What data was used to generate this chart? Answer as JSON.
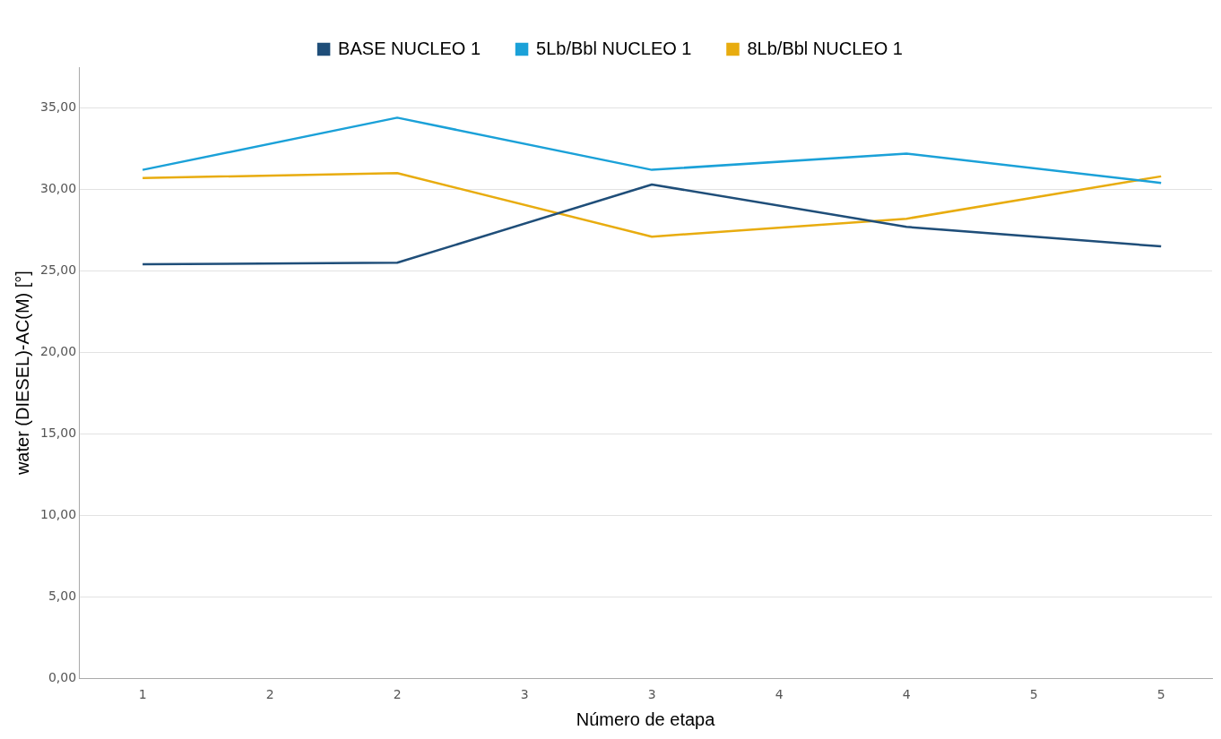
{
  "chart_data": {
    "type": "line",
    "xlabel": "Número de etapa",
    "ylabel": "water (DIESEL)-AC(M) [°]",
    "x": [
      1,
      2,
      3,
      4,
      5
    ],
    "series": [
      {
        "name": "BASE NUCLEO 1",
        "color": "#1f4e79",
        "values": [
          25.4,
          25.5,
          30.3,
          27.7,
          26.5
        ]
      },
      {
        "name": "5Lb/Bbl NUCLEO 1",
        "color": "#1ba1d8",
        "values": [
          31.2,
          34.4,
          31.2,
          32.2,
          30.4
        ]
      },
      {
        "name": "8Lb/Bbl NUCLEO 1",
        "color": "#e8ac0f",
        "values": [
          30.7,
          31.0,
          27.1,
          28.2,
          30.8
        ]
      }
    ],
    "xlim": [
      0.75,
      5.2
    ],
    "xticks": [
      1,
      {
        "value": 1.5,
        "label": "2"
      },
      2,
      {
        "value": 2.5,
        "label": "3"
      },
      3,
      {
        "value": 3.5,
        "label": "4"
      },
      4,
      {
        "value": 4.5,
        "label": "5"
      },
      5
    ],
    "ylim": [
      0,
      37.5
    ],
    "yticks": [
      {
        "value": 0,
        "label": "0,00"
      },
      {
        "value": 5,
        "label": "5,00"
      },
      {
        "value": 10,
        "label": "10,00"
      },
      {
        "value": 15,
        "label": "15,00"
      },
      {
        "value": 20,
        "label": "20,00"
      },
      {
        "value": 25,
        "label": "25,00"
      },
      {
        "value": 30,
        "label": "30,00"
      },
      {
        "value": 35,
        "label": "35,00"
      }
    ],
    "grid": "y",
    "legend": "top",
    "marker": "none",
    "line_style": "solid"
  }
}
